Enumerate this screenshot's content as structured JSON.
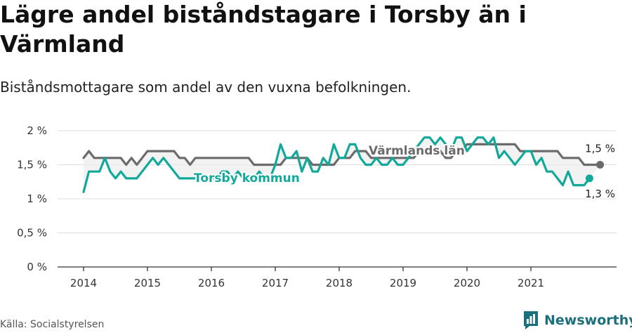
{
  "title": "Lägre andel biståndstagare i Torsby än i Värmland",
  "subtitle": "Biståndsmottagare som andel av den vuxna befolkningen.",
  "source": "Källa: Socialstyrelsen",
  "brand": {
    "name": "Newsworthy",
    "icon": "newsworthy-logo-icon",
    "color": "#1c6f7c"
  },
  "chart_data": {
    "type": "line",
    "title": "Lägre andel biståndstagare i Torsby än i Värmland",
    "subtitle": "Biståndsmottagare som andel av den vuxna befolkningen.",
    "xlabel": "",
    "ylabel": "",
    "x_start": "2014-01",
    "x_frequency": "monthly",
    "xticks": [
      "2014",
      "2015",
      "2016",
      "2017",
      "2018",
      "2019",
      "2020",
      "2021"
    ],
    "yticks": [
      "0 %",
      "0,5 %",
      "1 %",
      "1,5 %",
      "2 %"
    ],
    "ylim": [
      0,
      2
    ],
    "grid": true,
    "series": [
      {
        "name": "Värmlands län",
        "color": "#6b6b6e",
        "end_label": "1,5 %",
        "values": [
          1.6,
          1.7,
          1.6,
          1.6,
          1.6,
          1.6,
          1.6,
          1.6,
          1.5,
          1.6,
          1.5,
          1.6,
          1.7,
          1.7,
          1.7,
          1.7,
          1.7,
          1.7,
          1.6,
          1.6,
          1.5,
          1.6,
          1.6,
          1.6,
          1.6,
          1.6,
          1.6,
          1.6,
          1.6,
          1.6,
          1.6,
          1.6,
          1.5,
          1.5,
          1.5,
          1.5,
          1.5,
          1.5,
          1.6,
          1.6,
          1.6,
          1.6,
          1.6,
          1.5,
          1.5,
          1.5,
          1.5,
          1.5,
          1.6,
          1.6,
          1.6,
          1.7,
          1.7,
          1.7,
          1.6,
          1.6,
          1.6,
          1.6,
          1.6,
          1.6,
          1.6,
          1.6,
          1.6,
          1.7,
          1.7,
          1.7,
          1.7,
          1.7,
          1.6,
          1.6,
          1.7,
          1.7,
          1.8,
          1.8,
          1.8,
          1.8,
          1.8,
          1.8,
          1.8,
          1.8,
          1.8,
          1.8,
          1.7,
          1.7,
          1.7,
          1.7,
          1.7,
          1.7,
          1.7,
          1.7,
          1.6,
          1.6,
          1.6,
          1.6,
          1.5,
          1.5,
          1.5,
          1.5
        ]
      },
      {
        "name": "Torsby kommun",
        "color": "#12a89a",
        "end_label": "1,3 %",
        "values": [
          1.1,
          1.4,
          1.4,
          1.4,
          1.6,
          1.4,
          1.3,
          1.4,
          1.3,
          1.3,
          1.3,
          1.4,
          1.5,
          1.6,
          1.5,
          1.6,
          1.5,
          1.4,
          1.3,
          1.3,
          1.3,
          1.3,
          1.3,
          1.3,
          1.3,
          1.3,
          1.4,
          1.4,
          1.3,
          1.4,
          1.3,
          1.3,
          1.3,
          1.4,
          1.3,
          1.3,
          1.5,
          1.8,
          1.6,
          1.6,
          1.7,
          1.4,
          1.6,
          1.4,
          1.4,
          1.6,
          1.5,
          1.8,
          1.6,
          1.6,
          1.8,
          1.8,
          1.6,
          1.5,
          1.5,
          1.6,
          1.5,
          1.5,
          1.6,
          1.5,
          1.5,
          1.6,
          1.7,
          1.8,
          1.9,
          1.9,
          1.8,
          1.9,
          1.8,
          1.7,
          1.9,
          1.9,
          1.7,
          1.8,
          1.9,
          1.9,
          1.8,
          1.9,
          1.6,
          1.7,
          1.6,
          1.5,
          1.6,
          1.7,
          1.7,
          1.5,
          1.6,
          1.4,
          1.4,
          1.3,
          1.2,
          1.4,
          1.2,
          1.2,
          1.2,
          1.3
        ]
      }
    ]
  }
}
